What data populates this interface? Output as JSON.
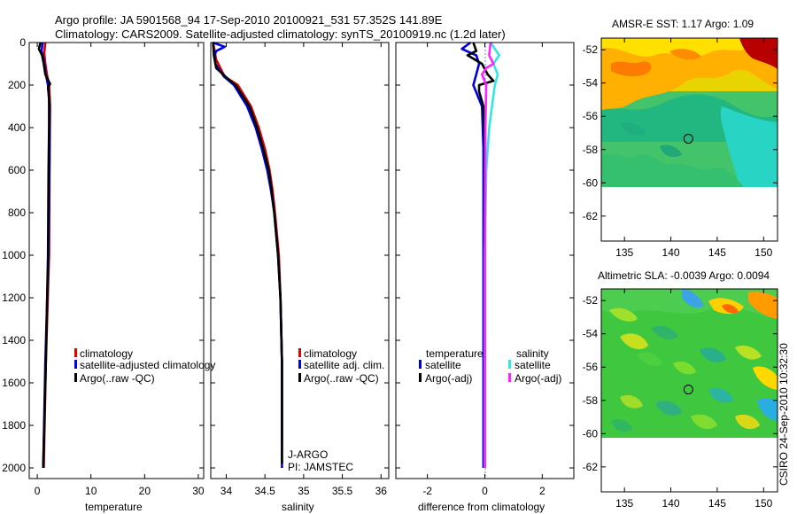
{
  "header": {
    "title_line1": "Argo profile: JA 5901568_94 17-Sep-2010 20100921_531 57.352S 141.89E",
    "title_line2": "Climatology: CARS2009. Satellite-adjusted climatology: synTS_20100919.nc (1.2d later)"
  },
  "credit": "CSIRO 24-Sep-2010 10:32:30",
  "colors": {
    "red": "#e00000",
    "blue": "#0000e0",
    "black": "#000000",
    "cyan": "#33e6e6",
    "magenta": "#ff22ff"
  },
  "chart_data": [
    {
      "type": "line",
      "name": "temperature-profile",
      "xlabel": "temperature",
      "ylabel": "",
      "xlim": [
        -1.5,
        31
      ],
      "ylim": [
        2050,
        0
      ],
      "xticks": [
        0,
        10,
        20,
        30
      ],
      "yticks": [
        0,
        200,
        400,
        600,
        800,
        1000,
        1200,
        1400,
        1600,
        1800,
        2000
      ],
      "legend": [
        "climatology",
        "satellite-adjusted climatology",
        "Argo(..raw -QC)"
      ],
      "series": [
        {
          "name": "climatology",
          "color": "red",
          "depth": [
            0,
            50,
            100,
            150,
            200,
            300,
            500,
            1000,
            1500,
            2000
          ],
          "values": [
            1.5,
            1.3,
            1.5,
            1.8,
            2.2,
            2.4,
            2.3,
            2.2,
            1.6,
            1.2
          ]
        },
        {
          "name": "satellite-adjusted climatology",
          "color": "blue",
          "depth": [
            0,
            40,
            80,
            150,
            200,
            300,
            500,
            1000,
            1500,
            2000
          ],
          "values": [
            1.0,
            0.8,
            1.2,
            1.6,
            2.0,
            2.3,
            2.3,
            2.1,
            1.5,
            1.1
          ]
        },
        {
          "name": "Argo(..raw -QC)",
          "color": "black",
          "depth": [
            0,
            30,
            60,
            100,
            150,
            180,
            195,
            210,
            260,
            400,
            600,
            1000,
            1500,
            2000
          ],
          "values": [
            0.6,
            0.3,
            0.9,
            1.2,
            1.5,
            2.1,
            2.4,
            2.0,
            2.2,
            2.2,
            2.1,
            2.0,
            1.6,
            1.1
          ]
        }
      ]
    },
    {
      "type": "line",
      "name": "salinity-profile",
      "xlabel": "salinity",
      "xlim": [
        33.8,
        36.1
      ],
      "ylim": [
        2050,
        0
      ],
      "xticks": [
        34,
        34.5,
        35,
        35.5,
        36
      ],
      "xticklabels": [
        "34",
        "34.5",
        "35",
        "35.5",
        "36"
      ],
      "legend": [
        "climatology",
        "satellite adj. clim.",
        "Argo(..raw -QC)"
      ],
      "annotation": [
        "J-ARGO",
        "PI: JAMSTEC"
      ],
      "series": [
        {
          "name": "climatology",
          "color": "red",
          "depth": [
            0,
            80,
            160,
            200,
            300,
            400,
            500,
            600,
            700,
            800,
            1000,
            1200,
            1500,
            1880
          ],
          "values": [
            33.83,
            33.87,
            33.98,
            34.15,
            34.32,
            34.42,
            34.5,
            34.56,
            34.6,
            34.63,
            34.68,
            34.7,
            34.72,
            34.72
          ]
        },
        {
          "name": "satellite adj. clim.",
          "color": "blue",
          "depth": [
            0,
            20,
            40,
            60,
            100,
            160,
            200,
            300,
            400,
            500,
            600,
            700,
            800,
            1000,
            1200,
            1500,
            2000
          ],
          "values": [
            33.83,
            33.98,
            33.87,
            33.85,
            33.86,
            33.97,
            34.1,
            34.27,
            34.38,
            34.46,
            34.53,
            34.58,
            34.62,
            34.67,
            34.7,
            34.72,
            34.72
          ]
        },
        {
          "name": "Argo(..raw -QC)",
          "color": "black",
          "depth": [
            0,
            60,
            120,
            170,
            200,
            300,
            400,
            500,
            600,
            700,
            800,
            1000,
            1200,
            1500,
            1980
          ],
          "values": [
            33.83,
            33.84,
            33.87,
            34.02,
            34.12,
            34.3,
            34.4,
            34.48,
            34.55,
            34.59,
            34.62,
            34.67,
            34.7,
            34.72,
            34.72
          ]
        }
      ]
    },
    {
      "type": "line",
      "name": "difference-profile",
      "xlabel": "difference from climatology",
      "xlim": [
        -3.1,
        3.1
      ],
      "ylim": [
        2050,
        0
      ],
      "xticks": [
        -2,
        0,
        2
      ],
      "legend_temperature_title": "temperature",
      "legend_salinity_title": "salinity",
      "legend_temperature": [
        "satellite",
        "Argo(-adj)"
      ],
      "legend_salinity": [
        "satellite",
        "Argo(-adj)"
      ],
      "series": [
        {
          "name": "temperature satellite",
          "color": "blue",
          "depth": [
            0,
            30,
            60,
            100,
            150,
            200,
            300,
            500,
            1000,
            2000
          ],
          "values": [
            -0.5,
            -0.8,
            -0.3,
            -0.2,
            -0.3,
            -0.4,
            -0.1,
            -0.05,
            -0.05,
            -0.05
          ]
        },
        {
          "name": "temperature Argo(-adj)",
          "color": "black",
          "depth": [
            0,
            40,
            60,
            100,
            150,
            180,
            200,
            230,
            300,
            500,
            1000,
            2000
          ],
          "values": [
            -0.4,
            -0.3,
            -0.6,
            -0.1,
            0.1,
            0.3,
            -0.2,
            -0.2,
            -0.05,
            0.0,
            0.0,
            0.0
          ]
        },
        {
          "name": "salinity satellite",
          "color": "cyan",
          "depth": [
            0,
            60,
            100,
            150,
            200,
            300,
            400,
            600,
            1000,
            2000
          ],
          "values": [
            0.2,
            0.5,
            0.3,
            0.45,
            0.35,
            0.25,
            0.15,
            0.05,
            0.0,
            0.0
          ]
        },
        {
          "name": "salinity Argo(-adj)",
          "color": "magenta",
          "depth": [
            0,
            60,
            100,
            120,
            150,
            200,
            400,
            1000,
            2000
          ],
          "values": [
            0.2,
            0.15,
            0.3,
            0.05,
            -0.1,
            0.05,
            0.02,
            0.0,
            0.0
          ]
        }
      ]
    },
    {
      "type": "heatmap",
      "name": "sst-map",
      "title": "AMSR-E SST: 1.17 Argo: 1.09",
      "xlim": [
        132.5,
        151.5
      ],
      "ylim": [
        -63.5,
        -51.3
      ],
      "xticks": [
        135,
        140,
        145,
        150
      ],
      "yticks": [
        -52,
        -54,
        -56,
        -58,
        -60,
        -62
      ],
      "data_extent_lat": [
        -60,
        -51.3
      ],
      "marker": {
        "lon": 141.89,
        "lat": -57.35
      }
    },
    {
      "type": "heatmap",
      "name": "sla-map",
      "title": "Altimetric SLA: -0.0039 Argo: 0.0094",
      "xlim": [
        132.5,
        151.5
      ],
      "ylim": [
        -63.5,
        -51.3
      ],
      "xticks": [
        135,
        140,
        145,
        150
      ],
      "yticks": [
        -52,
        -54,
        -56,
        -58,
        -60,
        -62
      ],
      "data_extent_lat": [
        -60,
        -51.3
      ],
      "marker": {
        "lon": 141.89,
        "lat": -57.35
      }
    }
  ]
}
